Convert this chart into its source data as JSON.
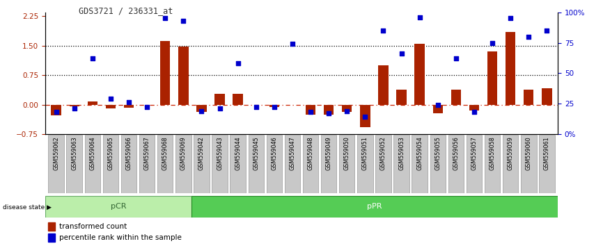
{
  "title": "GDS3721 / 236331_at",
  "samples": [
    "GSM559062",
    "GSM559063",
    "GSM559064",
    "GSM559065",
    "GSM559066",
    "GSM559067",
    "GSM559068",
    "GSM559069",
    "GSM559042",
    "GSM559043",
    "GSM559044",
    "GSM559045",
    "GSM559046",
    "GSM559047",
    "GSM559048",
    "GSM559049",
    "GSM559050",
    "GSM559051",
    "GSM559052",
    "GSM559053",
    "GSM559054",
    "GSM559055",
    "GSM559056",
    "GSM559057",
    "GSM559058",
    "GSM559059",
    "GSM559060",
    "GSM559061"
  ],
  "transformed_count": [
    -0.28,
    -0.05,
    0.08,
    -0.1,
    -0.08,
    0.0,
    1.62,
    1.47,
    -0.18,
    0.27,
    0.27,
    0.0,
    -0.07,
    0.0,
    -0.25,
    -0.25,
    -0.18,
    -0.57,
    1.0,
    0.38,
    1.55,
    -0.22,
    0.38,
    -0.15,
    1.35,
    1.85,
    0.38,
    0.42
  ],
  "percentile_rank": [
    18,
    21,
    62,
    29,
    26,
    22,
    95,
    93,
    19,
    21,
    58,
    22,
    22,
    74,
    18,
    17,
    19,
    14,
    85,
    66,
    96,
    24,
    62,
    18,
    75,
    95,
    80,
    85
  ],
  "pCR_count": 8,
  "pPR_count": 20,
  "bar_color": "#aa2200",
  "dot_color": "#0000cc",
  "bg_color": "#ffffff",
  "ylim_left": [
    -0.75,
    2.35
  ],
  "ylim_right": [
    0,
    100
  ],
  "yticks_left": [
    -0.75,
    0.0,
    0.75,
    1.5,
    2.25
  ],
  "yticks_right": [
    0,
    25,
    50,
    75,
    100
  ],
  "ytick_labels_right": [
    "0%",
    "25",
    "50",
    "75",
    "100%"
  ],
  "hline_vals": [
    0.75,
    1.5
  ],
  "hline_color": "#000000",
  "zero_line_color": "#cc2200",
  "pCR_color": "#bbeeaa",
  "pPR_color": "#55cc55",
  "pCR_border": "#66aa66",
  "pPR_border": "#228822",
  "disease_state_label": "disease state",
  "legend_bar_label": "transformed count",
  "legend_dot_label": "percentile rank within the sample",
  "tick_bg_color": "#c8c8c8",
  "tick_border_color": "#888888",
  "pCR_label": "pCR",
  "pPR_label": "pPR",
  "pCR_text_color": "#336633",
  "pPR_text_color": "#ffffff",
  "black_bar_color": "#222222"
}
